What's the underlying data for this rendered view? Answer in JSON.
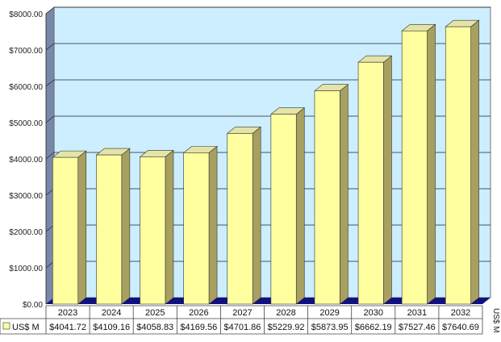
{
  "chart_data": {
    "type": "bar",
    "categories": [
      "2023",
      "2024",
      "2025",
      "2026",
      "2027",
      "2028",
      "2029",
      "2030",
      "2031",
      "2032"
    ],
    "series": [
      {
        "name": "US$ M",
        "values": [
          4041.72,
          4109.16,
          4058.83,
          4169.56,
          4701.86,
          5229.92,
          5873.95,
          6662.19,
          7527.46,
          7640.69
        ],
        "labels": [
          "$4041.72",
          "$4109.16",
          "$4058.83",
          "$4169.56",
          "$4701.86",
          "$5229.92",
          "$5873.95",
          "$6662.19",
          "$7527.46",
          "$7640.69"
        ]
      }
    ],
    "ylim": [
      0,
      8000
    ],
    "yticks": [
      0,
      1000,
      2000,
      3000,
      4000,
      5000,
      6000,
      7000,
      8000
    ],
    "ytick_labels": [
      "$0.00",
      "$1000.00",
      "$2000.00",
      "$3000.00",
      "$4000.00",
      "$5000.00",
      "$6000.00",
      "$7000.00",
      "$8000.00"
    ],
    "ylabel": "US$ M",
    "grid": true,
    "legend": "data table",
    "colors": {
      "bar_front": "#ffffa0",
      "bar_side": "#a8a060",
      "bar_top": "#e4e4a8",
      "plot_back": "#cceeff",
      "side_wall": "#7888a8",
      "floor": "#101080",
      "grid": "#222222"
    }
  }
}
